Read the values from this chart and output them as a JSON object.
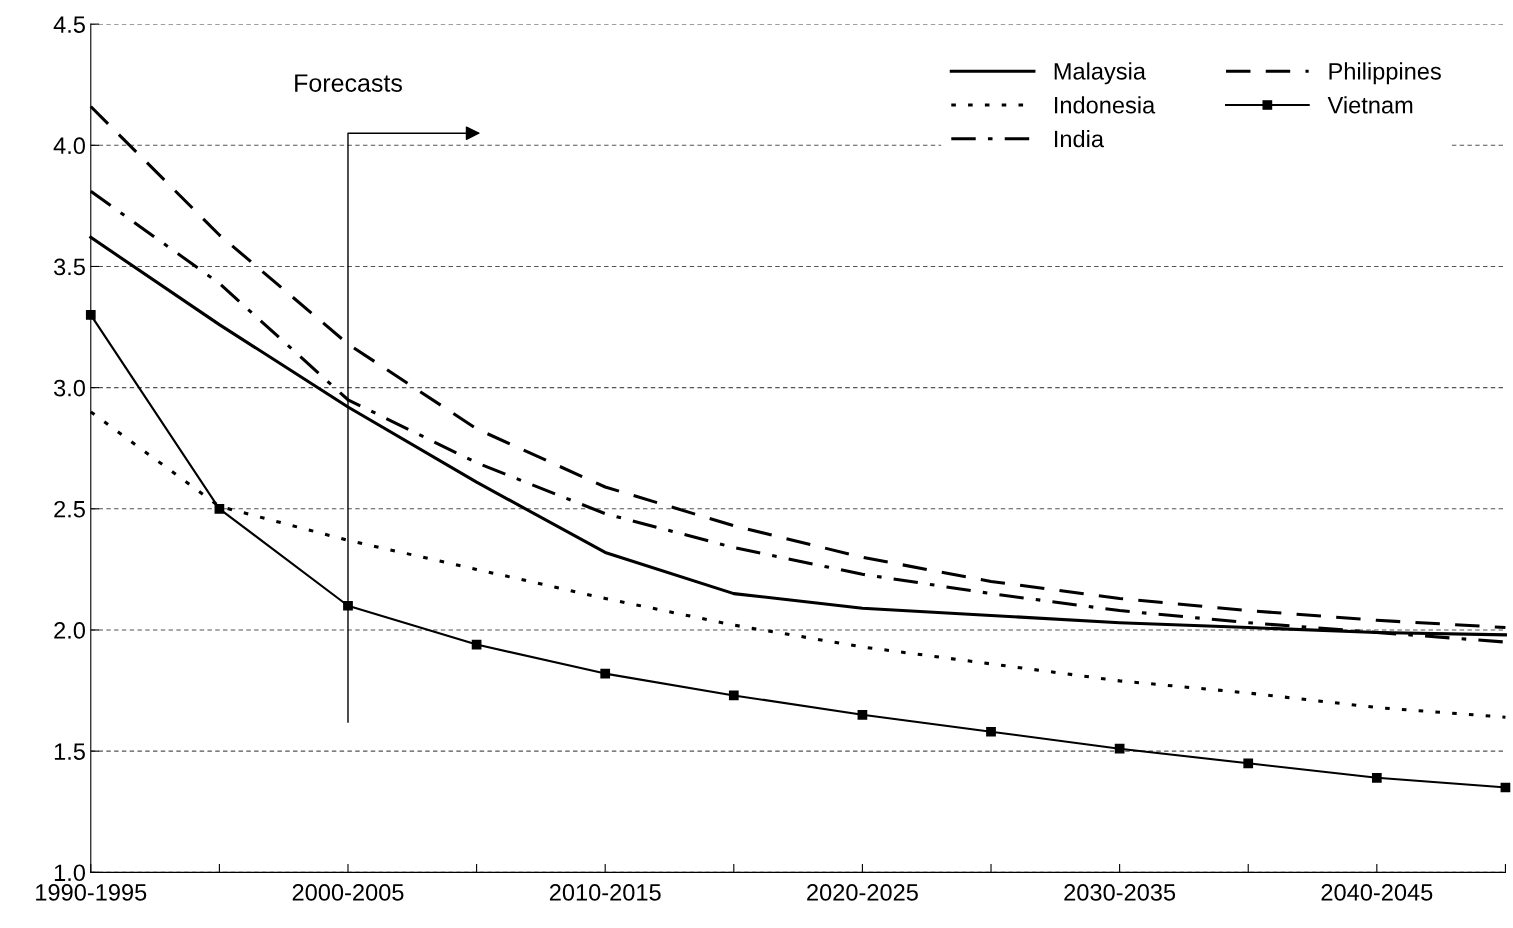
{
  "chart_data": {
    "type": "line",
    "categories": [
      "1990-1995",
      null,
      "2000-2005",
      null,
      "2010-2015",
      null,
      "2020-2025",
      null,
      "2030-2035",
      null,
      "2040-2045",
      null
    ],
    "series": [
      {
        "name": "Malaysia",
        "color": "#000000",
        "line_style": "solid",
        "marker": "none",
        "values": [
          3.62,
          3.26,
          2.92,
          2.61,
          2.32,
          2.15,
          2.09,
          2.06,
          2.03,
          2.01,
          1.99,
          1.98
        ]
      },
      {
        "name": "Indonesia",
        "color": "#000000",
        "line_style": "dotted",
        "marker": "none",
        "values": [
          2.9,
          2.51,
          2.37,
          2.25,
          2.13,
          2.02,
          1.93,
          1.86,
          1.79,
          1.74,
          1.68,
          1.64
        ]
      },
      {
        "name": "India",
        "color": "#000000",
        "line_style": "dashdot",
        "marker": "none",
        "values": [
          3.81,
          3.43,
          2.95,
          2.69,
          2.48,
          2.34,
          2.23,
          2.15,
          2.08,
          2.03,
          1.99,
          1.95
        ]
      },
      {
        "name": "Philippines",
        "color": "#000000",
        "line_style": "dashed",
        "marker": "none",
        "values": [
          4.16,
          3.63,
          3.18,
          2.83,
          2.59,
          2.43,
          2.3,
          2.2,
          2.13,
          2.08,
          2.04,
          2.01
        ]
      },
      {
        "name": "Vietnam",
        "color": "#000000",
        "line_style": "solid",
        "marker": "square",
        "values": [
          3.3,
          2.5,
          2.1,
          1.94,
          1.82,
          1.73,
          1.65,
          1.58,
          1.51,
          1.45,
          1.39,
          1.35
        ]
      }
    ],
    "ylim": [
      1.0,
      4.5
    ],
    "yticks": [
      {
        "value": 1.0,
        "label": "1.0"
      },
      {
        "value": 1.5,
        "label": "1.5"
      },
      {
        "value": 2.0,
        "label": "2.0"
      },
      {
        "value": 2.5,
        "label": "2.5"
      },
      {
        "value": 3.0,
        "label": "3.0"
      },
      {
        "value": 3.5,
        "label": "3.5"
      },
      {
        "value": 4.0,
        "label": "4.0"
      },
      {
        "value": 4.5,
        "label": "4.5"
      }
    ],
    "grid": "y",
    "legend": "top right",
    "annotations": [
      "Forecasts"
    ]
  }
}
